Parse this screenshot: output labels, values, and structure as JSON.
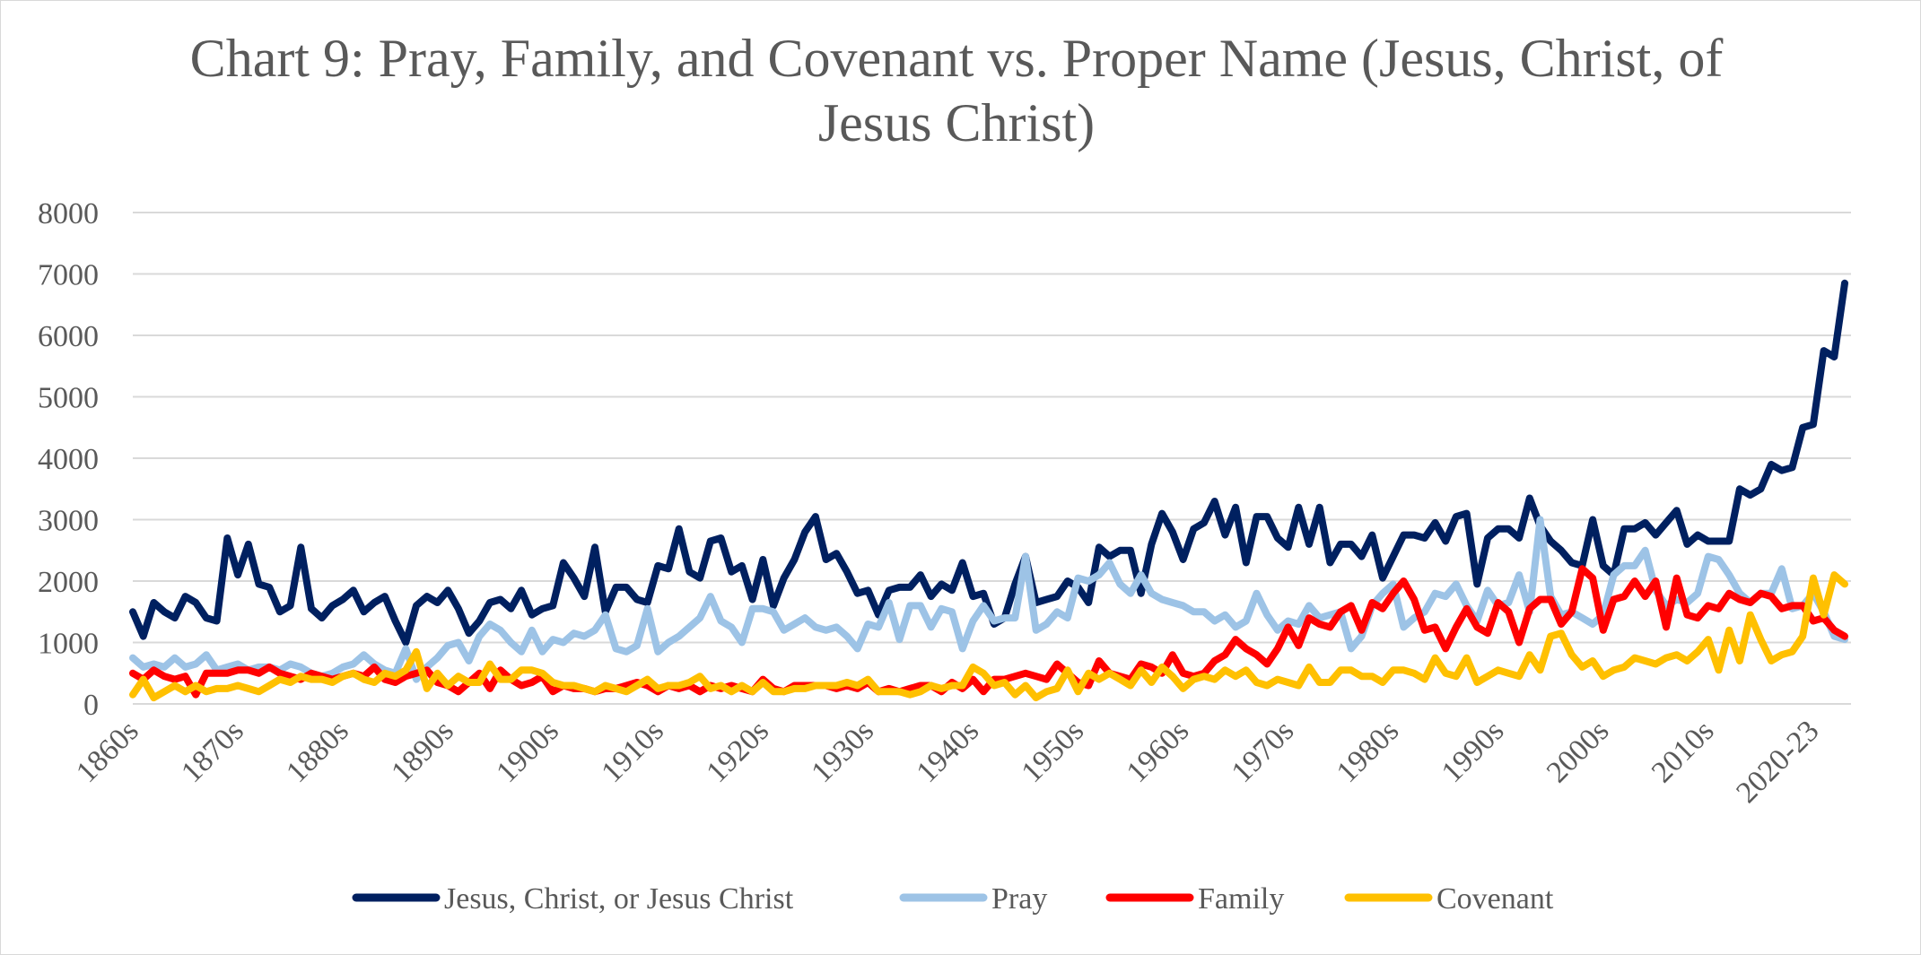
{
  "chart_data": {
    "type": "line",
    "title": "Chart 9: Pray, Family, and Covenant vs. Proper Name (Jesus, Christ, of Jesus Christ)",
    "categories": [
      "1860s",
      null,
      null,
      null,
      null,
      null,
      null,
      null,
      null,
      null,
      "1870s",
      null,
      null,
      null,
      null,
      null,
      null,
      null,
      null,
      null,
      "1880s",
      null,
      null,
      null,
      null,
      null,
      null,
      null,
      null,
      null,
      "1890s",
      null,
      null,
      null,
      null,
      null,
      null,
      null,
      null,
      null,
      "1900s",
      null,
      null,
      null,
      null,
      null,
      null,
      null,
      null,
      null,
      "1910s",
      null,
      null,
      null,
      null,
      null,
      null,
      null,
      null,
      null,
      "1920s",
      null,
      null,
      null,
      null,
      null,
      null,
      null,
      null,
      null,
      "1930s",
      null,
      null,
      null,
      null,
      null,
      null,
      null,
      null,
      null,
      "1940s",
      null,
      null,
      null,
      null,
      null,
      null,
      null,
      null,
      null,
      "1950s",
      null,
      null,
      null,
      null,
      null,
      null,
      null,
      null,
      null,
      "1960s",
      null,
      null,
      null,
      null,
      null,
      null,
      null,
      null,
      null,
      "1970s",
      null,
      null,
      null,
      null,
      null,
      null,
      null,
      null,
      null,
      "1980s",
      null,
      null,
      null,
      null,
      null,
      null,
      null,
      null,
      null,
      "1990s",
      null,
      null,
      null,
      null,
      null,
      null,
      null,
      null,
      null,
      "2000s",
      null,
      null,
      null,
      null,
      null,
      null,
      null,
      null,
      null,
      "2010s",
      null,
      null,
      null,
      null,
      null,
      null,
      null,
      null,
      null,
      "2020-23",
      null,
      null,
      null
    ],
    "series": [
      {
        "name": "Jesus, Christ, or Jesus Christ",
        "color": "#002060",
        "values": [
          1500,
          1100,
          1650,
          1500,
          1400,
          1750,
          1650,
          1400,
          1350,
          2700,
          2100,
          2600,
          1950,
          1900,
          1500,
          1600,
          2550,
          1550,
          1400,
          1600,
          1700,
          1850,
          1500,
          1650,
          1750,
          1350,
          1000,
          1600,
          1750,
          1650,
          1850,
          1550,
          1150,
          1350,
          1650,
          1700,
          1550,
          1850,
          1450,
          1550,
          1600,
          2300,
          2050,
          1750,
          2550,
          1500,
          1900,
          1900,
          1700,
          1650,
          2250,
          2200,
          2850,
          2150,
          2050,
          2650,
          2700,
          2150,
          2250,
          1700,
          2350,
          1600,
          2050,
          2350,
          2800,
          3050,
          2350,
          2450,
          2150,
          1800,
          1850,
          1450,
          1850,
          1900,
          1900,
          2100,
          1750,
          1950,
          1850,
          2300,
          1750,
          1800,
          1300,
          1400,
          1950,
          2400,
          1650,
          1700,
          1750,
          2000,
          1900,
          1650,
          2550,
          2400,
          2500,
          2500,
          1800,
          2600,
          3100,
          2800,
          2350,
          2850,
          2950,
          3300,
          2750,
          3200,
          2300,
          3050,
          3050,
          2700,
          2550,
          3200,
          2600,
          3200,
          2300,
          2600,
          2600,
          2400,
          2750,
          2050,
          2400,
          2750,
          2750,
          2700,
          2950,
          2650,
          3050,
          3100,
          1950,
          2700,
          2850,
          2850,
          2700,
          3350,
          2900,
          2650,
          2500,
          2300,
          2250,
          3000,
          2250,
          2100,
          2850,
          2850,
          2950,
          2750,
          2950,
          3150,
          2600,
          2750,
          2650,
          2650,
          2650,
          3500,
          3400,
          3500,
          3900,
          3800,
          3850,
          4500,
          4550,
          5750,
          5650,
          6850
        ]
      },
      {
        "name": "Pray",
        "color": "#9dc3e6",
        "values": [
          750,
          600,
          650,
          600,
          750,
          600,
          650,
          800,
          550,
          600,
          650,
          550,
          600,
          600,
          550,
          650,
          600,
          500,
          450,
          500,
          600,
          650,
          800,
          650,
          550,
          500,
          900,
          400,
          600,
          750,
          950,
          1000,
          700,
          1100,
          1300,
          1200,
          1000,
          850,
          1200,
          850,
          1050,
          1000,
          1150,
          1100,
          1200,
          1450,
          900,
          850,
          950,
          1550,
          850,
          1000,
          1100,
          1250,
          1400,
          1750,
          1350,
          1250,
          1000,
          1550,
          1550,
          1500,
          1200,
          1300,
          1400,
          1250,
          1200,
          1250,
          1100,
          900,
          1300,
          1250,
          1650,
          1050,
          1600,
          1600,
          1250,
          1550,
          1500,
          900,
          1350,
          1600,
          1350,
          1400,
          1400,
          2400,
          1200,
          1300,
          1500,
          1400,
          2050,
          2000,
          2100,
          2300,
          1950,
          1800,
          2100,
          1800,
          1700,
          1650,
          1600,
          1500,
          1500,
          1350,
          1450,
          1250,
          1350,
          1800,
          1450,
          1200,
          1350,
          1300,
          1600,
          1400,
          1450,
          1500,
          900,
          1100,
          1600,
          1800,
          1950,
          1250,
          1400,
          1500,
          1800,
          1750,
          1950,
          1600,
          1350,
          1850,
          1600,
          1650,
          2100,
          1500,
          3000,
          1750,
          1450,
          1500,
          1400,
          1300,
          1450,
          2100,
          2250,
          2250,
          2500,
          1850,
          1600,
          1700,
          1650,
          1800,
          2400,
          2350,
          2100,
          1800,
          1650,
          1800,
          1800,
          2200,
          1550,
          1600,
          1800,
          1500,
          1100,
          1050
        ]
      },
      {
        "name": "Family",
        "color": "#ff0000",
        "values": [
          500,
          400,
          550,
          450,
          400,
          450,
          150,
          500,
          500,
          500,
          550,
          550,
          500,
          600,
          500,
          450,
          400,
          500,
          450,
          400,
          450,
          500,
          450,
          600,
          400,
          350,
          450,
          500,
          550,
          350,
          300,
          200,
          350,
          500,
          250,
          550,
          400,
          300,
          350,
          450,
          200,
          300,
          250,
          250,
          200,
          250,
          250,
          300,
          350,
          300,
          200,
          300,
          250,
          300,
          200,
          300,
          250,
          300,
          250,
          200,
          400,
          250,
          200,
          300,
          300,
          300,
          300,
          250,
          300,
          250,
          350,
          200,
          250,
          200,
          250,
          300,
          300,
          200,
          350,
          250,
          400,
          200,
          400,
          400,
          450,
          500,
          450,
          400,
          650,
          500,
          350,
          300,
          700,
          500,
          450,
          400,
          650,
          600,
          500,
          800,
          500,
          450,
          500,
          700,
          800,
          1050,
          900,
          800,
          650,
          900,
          1250,
          950,
          1400,
          1300,
          1250,
          1500,
          1600,
          1200,
          1650,
          1550,
          1800,
          2000,
          1700,
          1200,
          1250,
          900,
          1250,
          1550,
          1250,
          1150,
          1650,
          1500,
          1000,
          1550,
          1700,
          1700,
          1300,
          1500,
          2200,
          2050,
          1200,
          1700,
          1750,
          2000,
          1750,
          2000,
          1250,
          2050,
          1450,
          1400,
          1600,
          1550,
          1800,
          1700,
          1650,
          1800,
          1750,
          1550,
          1600,
          1600,
          1350,
          1400,
          1200,
          1100
        ]
      },
      {
        "name": "Covenant",
        "color": "#ffc000",
        "values": [
          150,
          400,
          100,
          200,
          300,
          200,
          300,
          200,
          250,
          250,
          300,
          250,
          200,
          300,
          400,
          350,
          450,
          400,
          400,
          350,
          450,
          500,
          400,
          350,
          500,
          450,
          550,
          850,
          250,
          500,
          300,
          450,
          350,
          350,
          650,
          400,
          400,
          550,
          550,
          500,
          350,
          300,
          300,
          250,
          200,
          300,
          250,
          200,
          300,
          400,
          250,
          300,
          300,
          350,
          450,
          250,
          300,
          200,
          300,
          200,
          350,
          200,
          200,
          250,
          250,
          300,
          300,
          300,
          350,
          300,
          400,
          200,
          200,
          200,
          150,
          200,
          300,
          250,
          300,
          300,
          600,
          500,
          300,
          350,
          150,
          300,
          100,
          200,
          250,
          550,
          200,
          500,
          400,
          500,
          400,
          300,
          550,
          350,
          600,
          450,
          250,
          400,
          450,
          400,
          550,
          450,
          550,
          350,
          300,
          400,
          350,
          300,
          600,
          350,
          350,
          550,
          550,
          450,
          450,
          350,
          550,
          550,
          500,
          400,
          750,
          500,
          450,
          750,
          350,
          450,
          550,
          500,
          450,
          800,
          550,
          1100,
          1150,
          800,
          600,
          700,
          450,
          550,
          600,
          750,
          700,
          650,
          750,
          800,
          700,
          850,
          1050,
          550,
          1200,
          700,
          1450,
          1050,
          700,
          800,
          850,
          1100,
          2050,
          1450,
          2100,
          1950
        ]
      }
    ],
    "ylim": [
      0,
      8000
    ],
    "yticks": [
      0,
      1000,
      2000,
      3000,
      4000,
      5000,
      6000,
      7000,
      8000
    ],
    "grid": true,
    "legend": "bottom"
  }
}
